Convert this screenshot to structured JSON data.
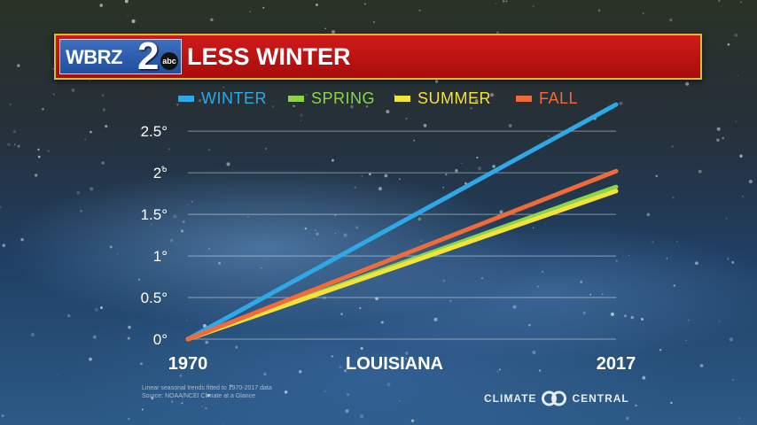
{
  "header": {
    "logo_text": "WBRZ",
    "logo_number": "2",
    "logo_network": "abc",
    "title": "LESS WINTER"
  },
  "colors": {
    "banner": "#c41414",
    "banner_border": "#e0b93a",
    "winter": "#2ea8e6",
    "spring": "#8cd44a",
    "summer": "#f3e23a",
    "fall": "#f06a3a"
  },
  "chart_data": {
    "type": "line",
    "title": "LESS WINTER",
    "xlabel": "LOUISIANA",
    "ylabel": "",
    "x": [
      1970,
      2017
    ],
    "x_tick_labels": [
      "1970",
      "2017"
    ],
    "ylim": [
      0,
      2.8
    ],
    "y_ticks": [
      0,
      0.5,
      1,
      1.5,
      2,
      2.5
    ],
    "y_tick_labels": [
      "0°",
      "0.5°",
      "1°",
      "1.5°",
      "2°",
      "2.5°"
    ],
    "grid": true,
    "legend_position": "top",
    "series": [
      {
        "name": "WINTER",
        "color": "#2ea8e6",
        "values": [
          0,
          2.82
        ]
      },
      {
        "name": "SPRING",
        "color": "#8cd44a",
        "values": [
          0,
          1.83
        ]
      },
      {
        "name": "SUMMER",
        "color": "#f3e23a",
        "values": [
          0,
          1.78
        ]
      },
      {
        "name": "FALL",
        "color": "#f06a3a",
        "values": [
          0,
          2.02
        ]
      }
    ]
  },
  "footnote": {
    "line1": "Linear seasonal trends fitted to 1970-2017 data",
    "line2": "Source: NOAA/NCEI Climate at a Glance"
  },
  "brand": {
    "left": "CLIMATE",
    "right": "CENTRAL"
  }
}
